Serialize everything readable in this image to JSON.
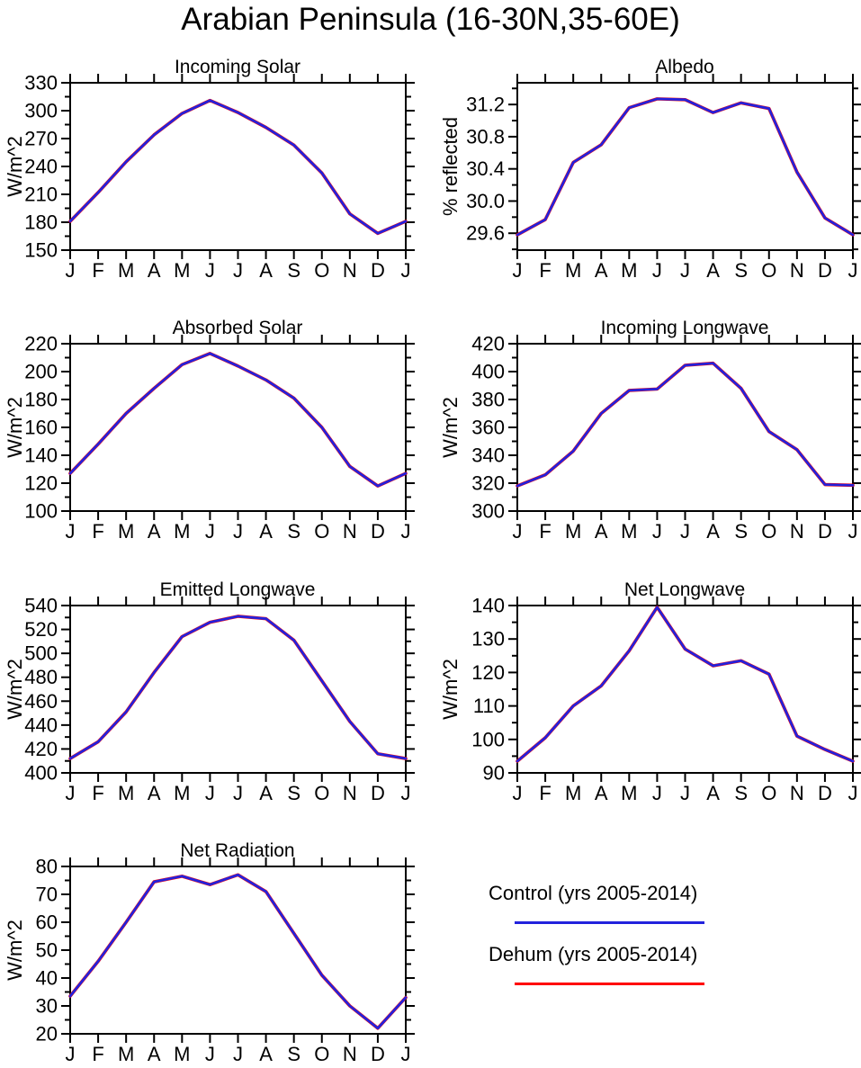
{
  "title": "Arabian Peninsula (16-30N,35-60E)",
  "months": [
    "J",
    "F",
    "M",
    "A",
    "M",
    "J",
    "J",
    "A",
    "S",
    "O",
    "N",
    "D",
    "J"
  ],
  "colors": {
    "control": "#2222dd",
    "dehum": "#ff0000",
    "axis": "#000000"
  },
  "legend": {
    "entries": [
      {
        "label": "Control (yrs 2005-2014)",
        "color": "#2222dd"
      },
      {
        "label": "Dehum (yrs 2005-2014)",
        "color": "#ff0000"
      }
    ]
  },
  "chart_data": [
    {
      "type": "line",
      "title": "Incoming Solar",
      "ylabel": "W/m^2",
      "ylim": [
        150,
        330
      ],
      "yticks": [
        150,
        180,
        210,
        240,
        270,
        300,
        330
      ],
      "ytick_labels": [
        "150",
        "180",
        "210",
        "240",
        "270",
        "300",
        "330"
      ],
      "ytick_minor_step": 15,
      "categories": [
        "J",
        "F",
        "M",
        "A",
        "M",
        "J",
        "J",
        "A",
        "S",
        "O",
        "N",
        "D",
        "J"
      ],
      "series": [
        {
          "name": "Control (yrs 2005-2014)",
          "color": "#2222dd",
          "values": [
            181,
            212,
            245,
            274,
            297,
            311,
            298,
            282,
            263,
            233,
            189,
            168,
            181
          ]
        },
        {
          "name": "Dehum (yrs 2005-2014)",
          "color": "#ff0000",
          "values": [
            181,
            212,
            245,
            274,
            297,
            311,
            298,
            282,
            263,
            233,
            189,
            168,
            181
          ]
        }
      ]
    },
    {
      "type": "line",
      "title": "Albedo",
      "ylabel": "% reflected",
      "ylim": [
        29.39,
        31.47
      ],
      "yticks": [
        29.6,
        30.0,
        30.4,
        30.8,
        31.2
      ],
      "ytick_labels": [
        "29.6",
        "30.0",
        "30.4",
        "30.8",
        "31.2"
      ],
      "ytick_minor_step": 0.2,
      "categories": [
        "J",
        "F",
        "M",
        "A",
        "M",
        "J",
        "J",
        "A",
        "S",
        "O",
        "N",
        "D",
        "J"
      ],
      "series": [
        {
          "name": "Control (yrs 2005-2014)",
          "color": "#2222dd",
          "values": [
            29.58,
            29.77,
            30.48,
            30.7,
            31.16,
            31.27,
            31.26,
            31.1,
            31.22,
            31.15,
            30.36,
            29.79,
            29.58
          ]
        },
        {
          "name": "Dehum (yrs 2005-2014)",
          "color": "#ff0000",
          "values": [
            29.58,
            29.77,
            30.48,
            30.7,
            31.16,
            31.27,
            31.26,
            31.1,
            31.22,
            31.15,
            30.36,
            29.79,
            29.58
          ]
        }
      ]
    },
    {
      "type": "line",
      "title": "Absorbed Solar",
      "ylabel": "W/m^2",
      "ylim": [
        100,
        220
      ],
      "yticks": [
        100,
        120,
        140,
        160,
        180,
        200,
        220
      ],
      "ytick_labels": [
        "100",
        "120",
        "140",
        "160",
        "180",
        "200",
        "220"
      ],
      "ytick_minor_step": 10,
      "categories": [
        "J",
        "F",
        "M",
        "A",
        "M",
        "J",
        "J",
        "A",
        "S",
        "O",
        "N",
        "D",
        "J"
      ],
      "series": [
        {
          "name": "Control (yrs 2005-2014)",
          "color": "#2222dd",
          "values": [
            127,
            148,
            170,
            188,
            205,
            213,
            204,
            194,
            181,
            160,
            132,
            118,
            127
          ]
        },
        {
          "name": "Dehum (yrs 2005-2014)",
          "color": "#ff0000",
          "values": [
            127,
            148,
            170,
            188,
            205,
            213,
            204,
            194,
            181,
            160,
            132,
            118,
            127
          ]
        }
      ]
    },
    {
      "type": "line",
      "title": "Incoming Longwave",
      "ylabel": "W/m^2",
      "ylim": [
        300,
        420
      ],
      "yticks": [
        300,
        320,
        340,
        360,
        380,
        400,
        420
      ],
      "ytick_labels": [
        "300",
        "320",
        "340",
        "360",
        "380",
        "400",
        "420"
      ],
      "ytick_minor_step": 10,
      "categories": [
        "J",
        "F",
        "M",
        "A",
        "M",
        "J",
        "J",
        "A",
        "S",
        "O",
        "N",
        "D",
        "J"
      ],
      "series": [
        {
          "name": "Control (yrs 2005-2014)",
          "color": "#2222dd",
          "values": [
            318,
            326,
            343,
            370,
            386.5,
            387.5,
            404.5,
            406,
            388,
            357,
            344,
            319,
            318.5
          ]
        },
        {
          "name": "Dehum (yrs 2005-2014)",
          "color": "#ff0000",
          "values": [
            318,
            326,
            343,
            370,
            386.5,
            387.5,
            404.5,
            406,
            388,
            357,
            344,
            319,
            318.5
          ]
        }
      ]
    },
    {
      "type": "line",
      "title": "Emitted Longwave",
      "ylabel": "W/m^2",
      "ylim": [
        400,
        540
      ],
      "yticks": [
        400,
        420,
        440,
        460,
        480,
        500,
        520,
        540
      ],
      "ytick_labels": [
        "400",
        "420",
        "440",
        "460",
        "480",
        "500",
        "520",
        "540"
      ],
      "ytick_minor_step": 10,
      "categories": [
        "J",
        "F",
        "M",
        "A",
        "M",
        "J",
        "J",
        "A",
        "S",
        "O",
        "N",
        "D",
        "J"
      ],
      "series": [
        {
          "name": "Control (yrs 2005-2014)",
          "color": "#2222dd",
          "values": [
            412,
            426,
            451,
            484,
            514,
            526,
            531,
            529,
            511,
            477,
            443,
            416,
            412
          ]
        },
        {
          "name": "Dehum (yrs 2005-2014)",
          "color": "#ff0000",
          "values": [
            412,
            426,
            451,
            484,
            514,
            526,
            531,
            529,
            511,
            477,
            443,
            416,
            412
          ]
        }
      ]
    },
    {
      "type": "line",
      "title": "Net Longwave",
      "ylabel": "W/m^2",
      "ylim": [
        90,
        140
      ],
      "yticks": [
        90,
        100,
        110,
        120,
        130,
        140
      ],
      "ytick_labels": [
        "90",
        "100",
        "110",
        "120",
        "130",
        "140"
      ],
      "ytick_minor_step": 5,
      "categories": [
        "J",
        "F",
        "M",
        "A",
        "M",
        "J",
        "J",
        "A",
        "S",
        "O",
        "N",
        "D",
        "J"
      ],
      "series": [
        {
          "name": "Control (yrs 2005-2014)",
          "color": "#2222dd",
          "values": [
            93.5,
            100.5,
            110,
            116,
            126.5,
            139.5,
            127,
            122,
            123.5,
            119.5,
            101,
            97,
            93.5
          ]
        },
        {
          "name": "Dehum (yrs 2005-2014)",
          "color": "#ff0000",
          "values": [
            93.5,
            100.5,
            110,
            116,
            126.5,
            139.5,
            127,
            122,
            123.5,
            119.5,
            101,
            97,
            93.5
          ]
        }
      ]
    },
    {
      "type": "line",
      "title": "Net Radiation",
      "ylabel": "W/m^2",
      "ylim": [
        20,
        80
      ],
      "yticks": [
        20,
        30,
        40,
        50,
        60,
        70,
        80
      ],
      "ytick_labels": [
        "20",
        "30",
        "40",
        "50",
        "60",
        "70",
        "80"
      ],
      "ytick_minor_step": 5,
      "categories": [
        "J",
        "F",
        "M",
        "A",
        "M",
        "J",
        "J",
        "A",
        "S",
        "O",
        "N",
        "D",
        "J"
      ],
      "series": [
        {
          "name": "Control (yrs 2005-2014)",
          "color": "#2222dd",
          "values": [
            33.5,
            46,
            60,
            74.5,
            76.5,
            73.5,
            77,
            71,
            56,
            41,
            30,
            22,
            33
          ]
        },
        {
          "name": "Dehum (yrs 2005-2014)",
          "color": "#ff0000",
          "values": [
            33.5,
            46,
            60,
            74.5,
            76.5,
            73.5,
            77,
            71,
            56,
            41,
            30,
            22,
            33
          ]
        }
      ]
    }
  ]
}
